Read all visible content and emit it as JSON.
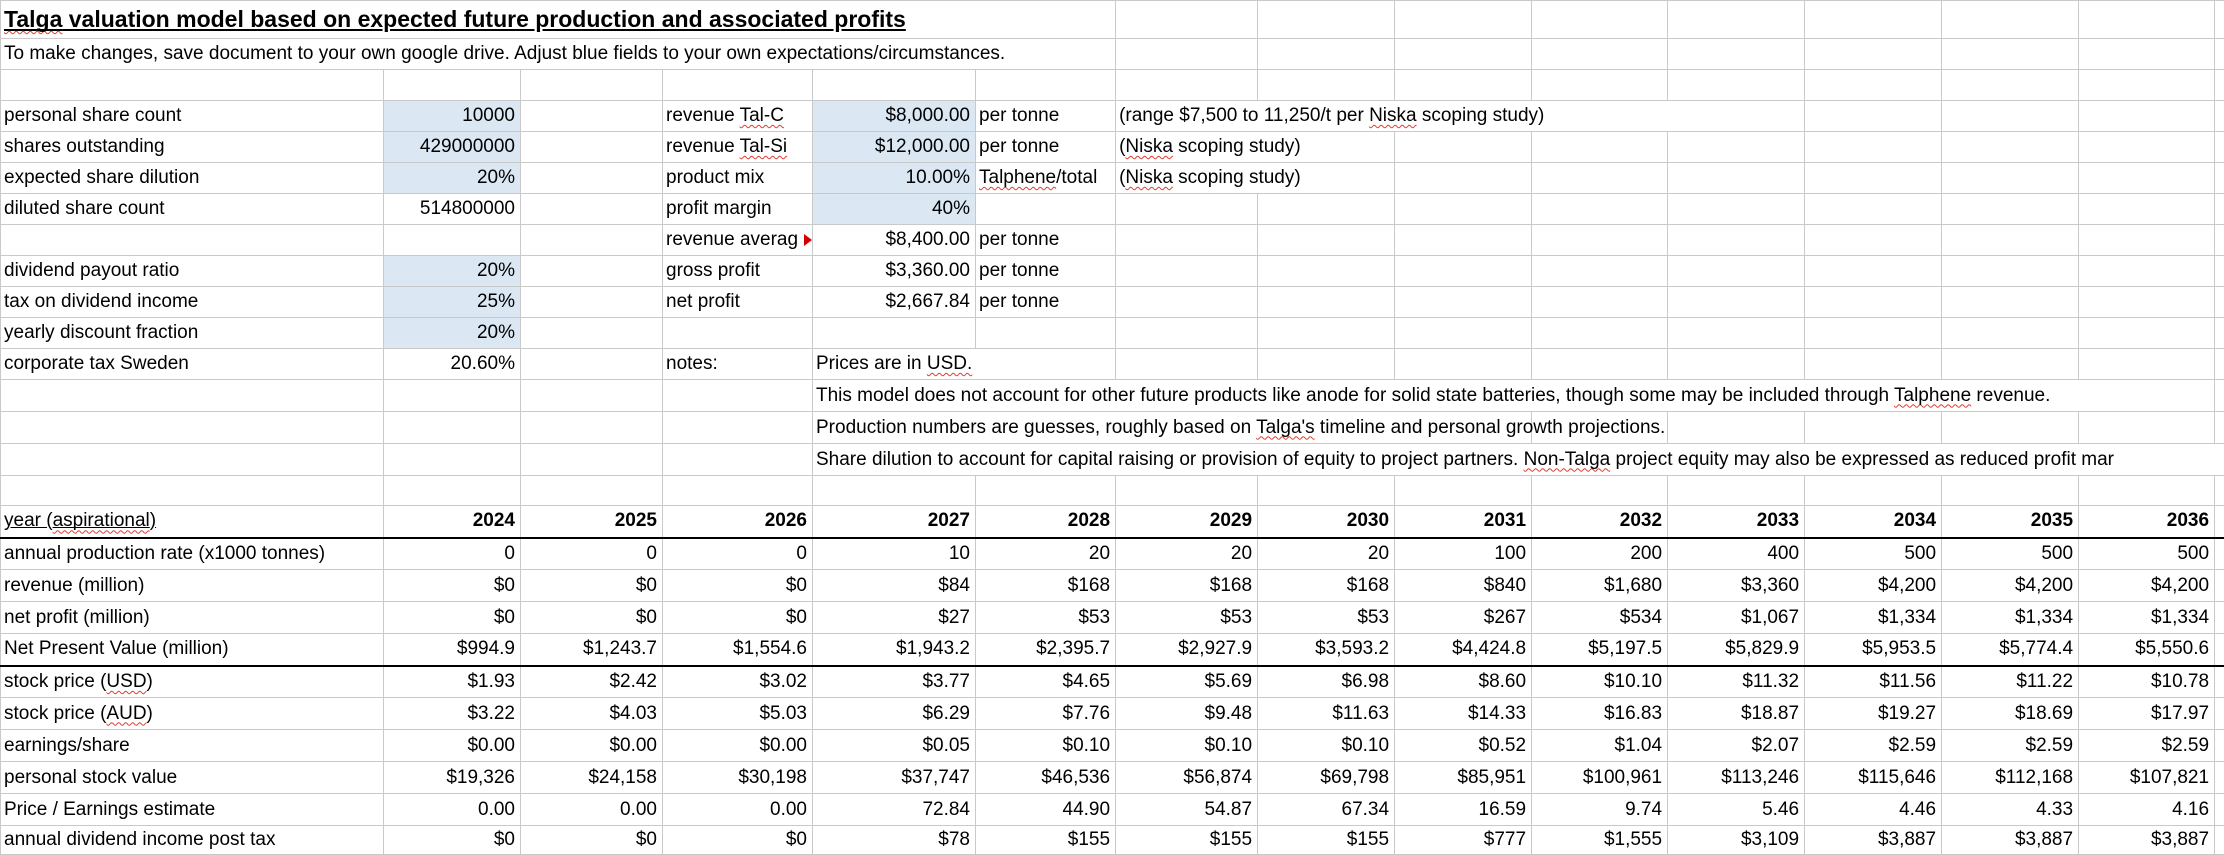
{
  "colors": {
    "input_fill": "#dbe7f3",
    "gridline": "#c9c9c9",
    "squiggle": "#e23b2e",
    "thick_border": "#000000"
  },
  "header": {
    "title_rich": [
      [
        "Talga",
        1
      ],
      [
        " valuation model based on expected future production and associated profits",
        0
      ]
    ],
    "subtitle": "To make changes, save document to your own google drive. Adjust blue fields to your own expectations/circumstances."
  },
  "left_params": [
    {
      "label": "personal share count",
      "value": "10000",
      "blue": true
    },
    {
      "label": "shares outstanding",
      "value": "429000000",
      "blue": true
    },
    {
      "label": "expected share dilution",
      "value": "20%",
      "blue": true
    },
    {
      "label": "diluted share count",
      "value": "514800000",
      "blue": false
    },
    {
      "label": "dividend payout ratio",
      "value": "20%",
      "blue": true
    },
    {
      "label": "tax on dividend income",
      "value": "25%",
      "blue": true
    },
    {
      "label": "yearly discount fraction",
      "value": "20%",
      "blue": true
    },
    {
      "label": "corporate tax Sweden",
      "value": "20.60%",
      "blue": false
    }
  ],
  "mid_params": [
    {
      "label_rich": [
        [
          "revenue ",
          0
        ],
        [
          "Tal-C",
          1
        ]
      ],
      "value": "$8,000.00",
      "unit_rich": [
        [
          "per tonne",
          0
        ]
      ],
      "note_rich": [
        [
          "(range $7,500 to 11,250/t per ",
          0
        ],
        [
          "Niska",
          1
        ],
        [
          " scoping study)",
          0
        ]
      ],
      "blue": true
    },
    {
      "label_rich": [
        [
          "revenue ",
          0
        ],
        [
          "Tal-Si",
          1
        ]
      ],
      "value": "$12,000.00",
      "unit_rich": [
        [
          "per tonne",
          0
        ]
      ],
      "note_rich": [
        [
          "(",
          0
        ],
        [
          "Niska",
          1
        ],
        [
          " scoping study)",
          0
        ]
      ],
      "blue": true
    },
    {
      "label_rich": [
        [
          "product mix",
          0
        ]
      ],
      "value": "10.00%",
      "unit_rich": [
        [
          "Talphene",
          1
        ],
        [
          "/total",
          0
        ]
      ],
      "note_rich": [
        [
          "(",
          0
        ],
        [
          "Niska",
          1
        ],
        [
          " scoping study)",
          0
        ]
      ],
      "blue": true
    },
    {
      "label_rich": [
        [
          "profit margin",
          0
        ]
      ],
      "value": "40%",
      "unit_rich": [],
      "note_rich": [],
      "blue": true
    },
    {
      "label_rich": [
        [
          "revenue averag",
          0
        ]
      ],
      "value": "$8,400.00",
      "unit_rich": [
        [
          "per tonne",
          0
        ]
      ],
      "note_rich": [],
      "blue": false,
      "truncated": true
    },
    {
      "label_rich": [
        [
          "gross profit",
          0
        ]
      ],
      "value": "$3,360.00",
      "unit_rich": [
        [
          "per tonne",
          0
        ]
      ],
      "note_rich": [],
      "blue": false
    },
    {
      "label_rich": [
        [
          "net profit",
          0
        ]
      ],
      "value": "$2,667.84",
      "unit_rich": [
        [
          "per tonne",
          0
        ]
      ],
      "note_rich": [],
      "blue": false
    }
  ],
  "notes": {
    "label": "notes:",
    "line1": [
      [
        "Prices are in ",
        0
      ],
      [
        "USD.",
        1
      ]
    ],
    "line2": [
      [
        "This model does not account for other future products like anode for solid state batteries, though some may be included through ",
        0
      ],
      [
        "Talphene",
        1
      ],
      [
        " revenue.",
        0
      ]
    ],
    "line3": [
      [
        "Production numbers are guesses, roughly based on ",
        0
      ],
      [
        "Talga's",
        1
      ],
      [
        " timeline and personal growth projections.",
        0
      ]
    ],
    "line4": [
      [
        "Share dilution to account for capital raising or provision of equity to project partners. ",
        0
      ],
      [
        "Non-Talga",
        1
      ],
      [
        " project equity may also be expressed as reduced profit mar",
        0
      ]
    ]
  },
  "projection": {
    "header_label_rich": [
      [
        "year (",
        0
      ],
      [
        "aspirational",
        1
      ],
      [
        ")",
        0
      ]
    ],
    "years": [
      "2024",
      "2025",
      "2026",
      "2027",
      "2028",
      "2029",
      "2030",
      "2031",
      "2032",
      "2033",
      "2034",
      "2035",
      "2036"
    ],
    "rows": [
      {
        "label_rich": [
          [
            "annual production rate (x1000 tonnes)",
            0
          ]
        ],
        "values": [
          "0",
          "0",
          "0",
          "10",
          "20",
          "20",
          "20",
          "100",
          "200",
          "400",
          "500",
          "500",
          "500"
        ]
      },
      {
        "label_rich": [
          [
            "revenue (million)",
            0
          ]
        ],
        "values": [
          "$0",
          "$0",
          "$0",
          "$84",
          "$168",
          "$168",
          "$168",
          "$840",
          "$1,680",
          "$3,360",
          "$4,200",
          "$4,200",
          "$4,200"
        ]
      },
      {
        "label_rich": [
          [
            "net profit (million)",
            0
          ]
        ],
        "values": [
          "$0",
          "$0",
          "$0",
          "$27",
          "$53",
          "$53",
          "$53",
          "$267",
          "$534",
          "$1,067",
          "$1,334",
          "$1,334",
          "$1,334"
        ]
      },
      {
        "label_rich": [
          [
            "Net Present Value (million)",
            0
          ]
        ],
        "values": [
          "$994.9",
          "$1,243.7",
          "$1,554.6",
          "$1,943.2",
          "$2,395.7",
          "$2,927.9",
          "$3,593.2",
          "$4,424.8",
          "$5,197.5",
          "$5,829.9",
          "$5,953.5",
          "$5,774.4",
          "$5,550.6"
        ],
        "thick_bottom": true
      },
      {
        "label_rich": [
          [
            "stock price (",
            0
          ],
          [
            "USD",
            1
          ],
          [
            ")",
            0
          ]
        ],
        "values": [
          "$1.93",
          "$2.42",
          "$3.02",
          "$3.77",
          "$4.65",
          "$5.69",
          "$6.98",
          "$8.60",
          "$10.10",
          "$11.32",
          "$11.56",
          "$11.22",
          "$10.78"
        ]
      },
      {
        "label_rich": [
          [
            "stock price (",
            0
          ],
          [
            "AUD",
            1
          ],
          [
            ")",
            0
          ]
        ],
        "values": [
          "$3.22",
          "$4.03",
          "$5.03",
          "$6.29",
          "$7.76",
          "$9.48",
          "$11.63",
          "$14.33",
          "$16.83",
          "$18.87",
          "$19.27",
          "$18.69",
          "$17.97"
        ]
      },
      {
        "label_rich": [
          [
            "earnings/share",
            0
          ]
        ],
        "values": [
          "$0.00",
          "$0.00",
          "$0.00",
          "$0.05",
          "$0.10",
          "$0.10",
          "$0.10",
          "$0.52",
          "$1.04",
          "$2.07",
          "$2.59",
          "$2.59",
          "$2.59"
        ]
      },
      {
        "label_rich": [
          [
            "personal stock value",
            0
          ]
        ],
        "values": [
          "$19,326",
          "$24,158",
          "$30,198",
          "$37,747",
          "$46,536",
          "$56,874",
          "$69,798",
          "$85,951",
          "$100,961",
          "$113,246",
          "$115,646",
          "$112,168",
          "$107,821"
        ]
      },
      {
        "label_rich": [
          [
            "Price / Earnings estimate",
            0
          ]
        ],
        "values": [
          "0.00",
          "0.00",
          "0.00",
          "72.84",
          "44.90",
          "54.87",
          "67.34",
          "16.59",
          "9.74",
          "5.46",
          "4.46",
          "4.33",
          "4.16"
        ]
      },
      {
        "label_rich": [
          [
            "annual dividend income post tax",
            0
          ]
        ],
        "values": [
          "$0",
          "$0",
          "$0",
          "$78",
          "$155",
          "$155",
          "$155",
          "$777",
          "$1,555",
          "$3,109",
          "$3,887",
          "$3,887",
          "$3,887"
        ]
      }
    ]
  }
}
